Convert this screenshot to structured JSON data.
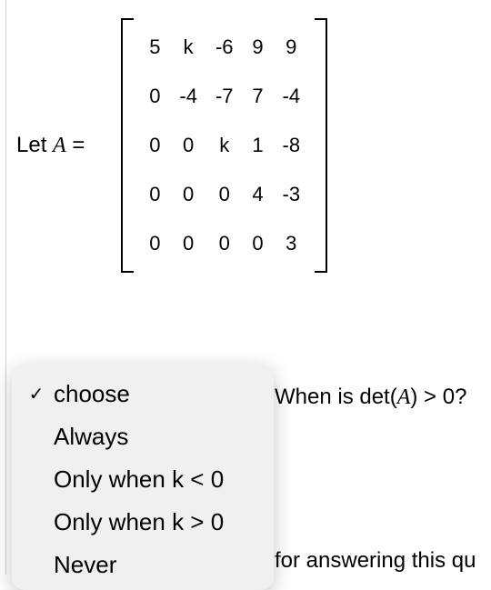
{
  "equation": {
    "prefix": "Let ",
    "variable": "A",
    "equals": " ="
  },
  "matrix": {
    "rows": [
      [
        "5",
        "k",
        "-6",
        "9",
        "9"
      ],
      [
        "0",
        "-4",
        "-7",
        "7",
        "-4"
      ],
      [
        "0",
        "0",
        "k",
        "1",
        "-8"
      ],
      [
        "0",
        "0",
        "0",
        "4",
        "-3"
      ],
      [
        "0",
        "0",
        "0",
        "0",
        "3"
      ]
    ]
  },
  "question": {
    "before": "When is det(",
    "variable": "A",
    "after": ") > 0?"
  },
  "footer_text": "for answering this qu",
  "dropdown": {
    "options": [
      {
        "label": "choose",
        "selected": true
      },
      {
        "label": "Always",
        "selected": false
      },
      {
        "label": "Only when k < 0",
        "selected": false
      },
      {
        "label": "Only when k > 0",
        "selected": false
      },
      {
        "label": "Never",
        "selected": false
      }
    ]
  },
  "styling": {
    "background_color": "#ffffff",
    "text_color": "#000000",
    "vline_color": "#d0d0d0",
    "dropdown_bg": "#f0f0f0",
    "dropdown_shadow": "rgba(0,0,0,0.22)",
    "body_fontsize": 24,
    "matrix_fontsize": 22,
    "dropdown_fontsize": 26,
    "check_glyph": "✓"
  }
}
